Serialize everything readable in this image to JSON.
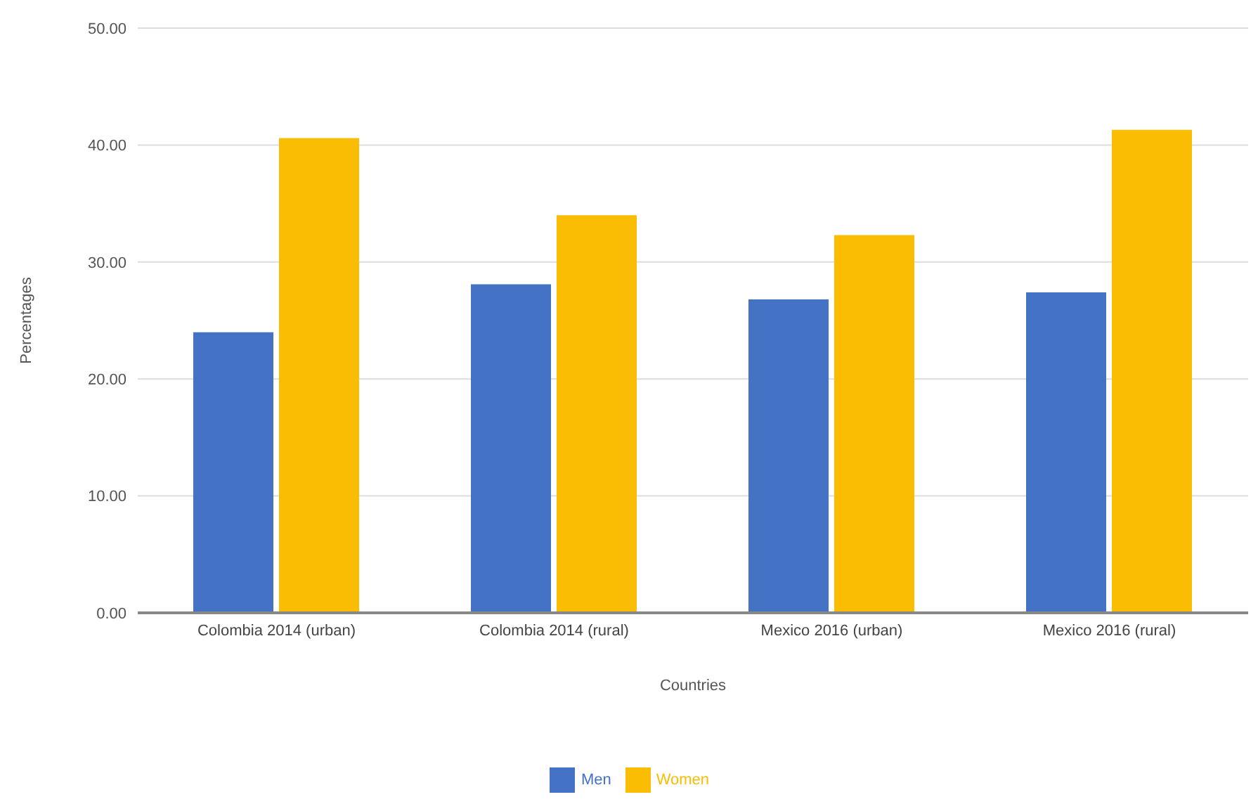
{
  "chart_data": {
    "type": "bar",
    "xlabel": "Countries",
    "ylabel": "Percentages",
    "categories": [
      "Colombia 2014 (urban)",
      "Colombia 2014 (rural)",
      "Mexico 2016 (urban)",
      "Mexico 2016 (rural)"
    ],
    "series": [
      {
        "name": "Men",
        "color": "#4472c4",
        "values": [
          24.0,
          28.1,
          26.8,
          27.4
        ]
      },
      {
        "name": "Women",
        "color": "#fbbc04",
        "values": [
          40.6,
          34.0,
          32.3,
          41.3
        ]
      }
    ],
    "ylim": [
      0,
      50
    ],
    "yticks": [
      {
        "value": 0,
        "label": "0.00"
      },
      {
        "value": 10,
        "label": "10.00"
      },
      {
        "value": 20,
        "label": "20.00"
      },
      {
        "value": 30,
        "label": "30.00"
      },
      {
        "value": 40,
        "label": "40.00"
      },
      {
        "value": 50,
        "label": "50.00"
      }
    ],
    "grid": "y",
    "legend": "bottom"
  }
}
